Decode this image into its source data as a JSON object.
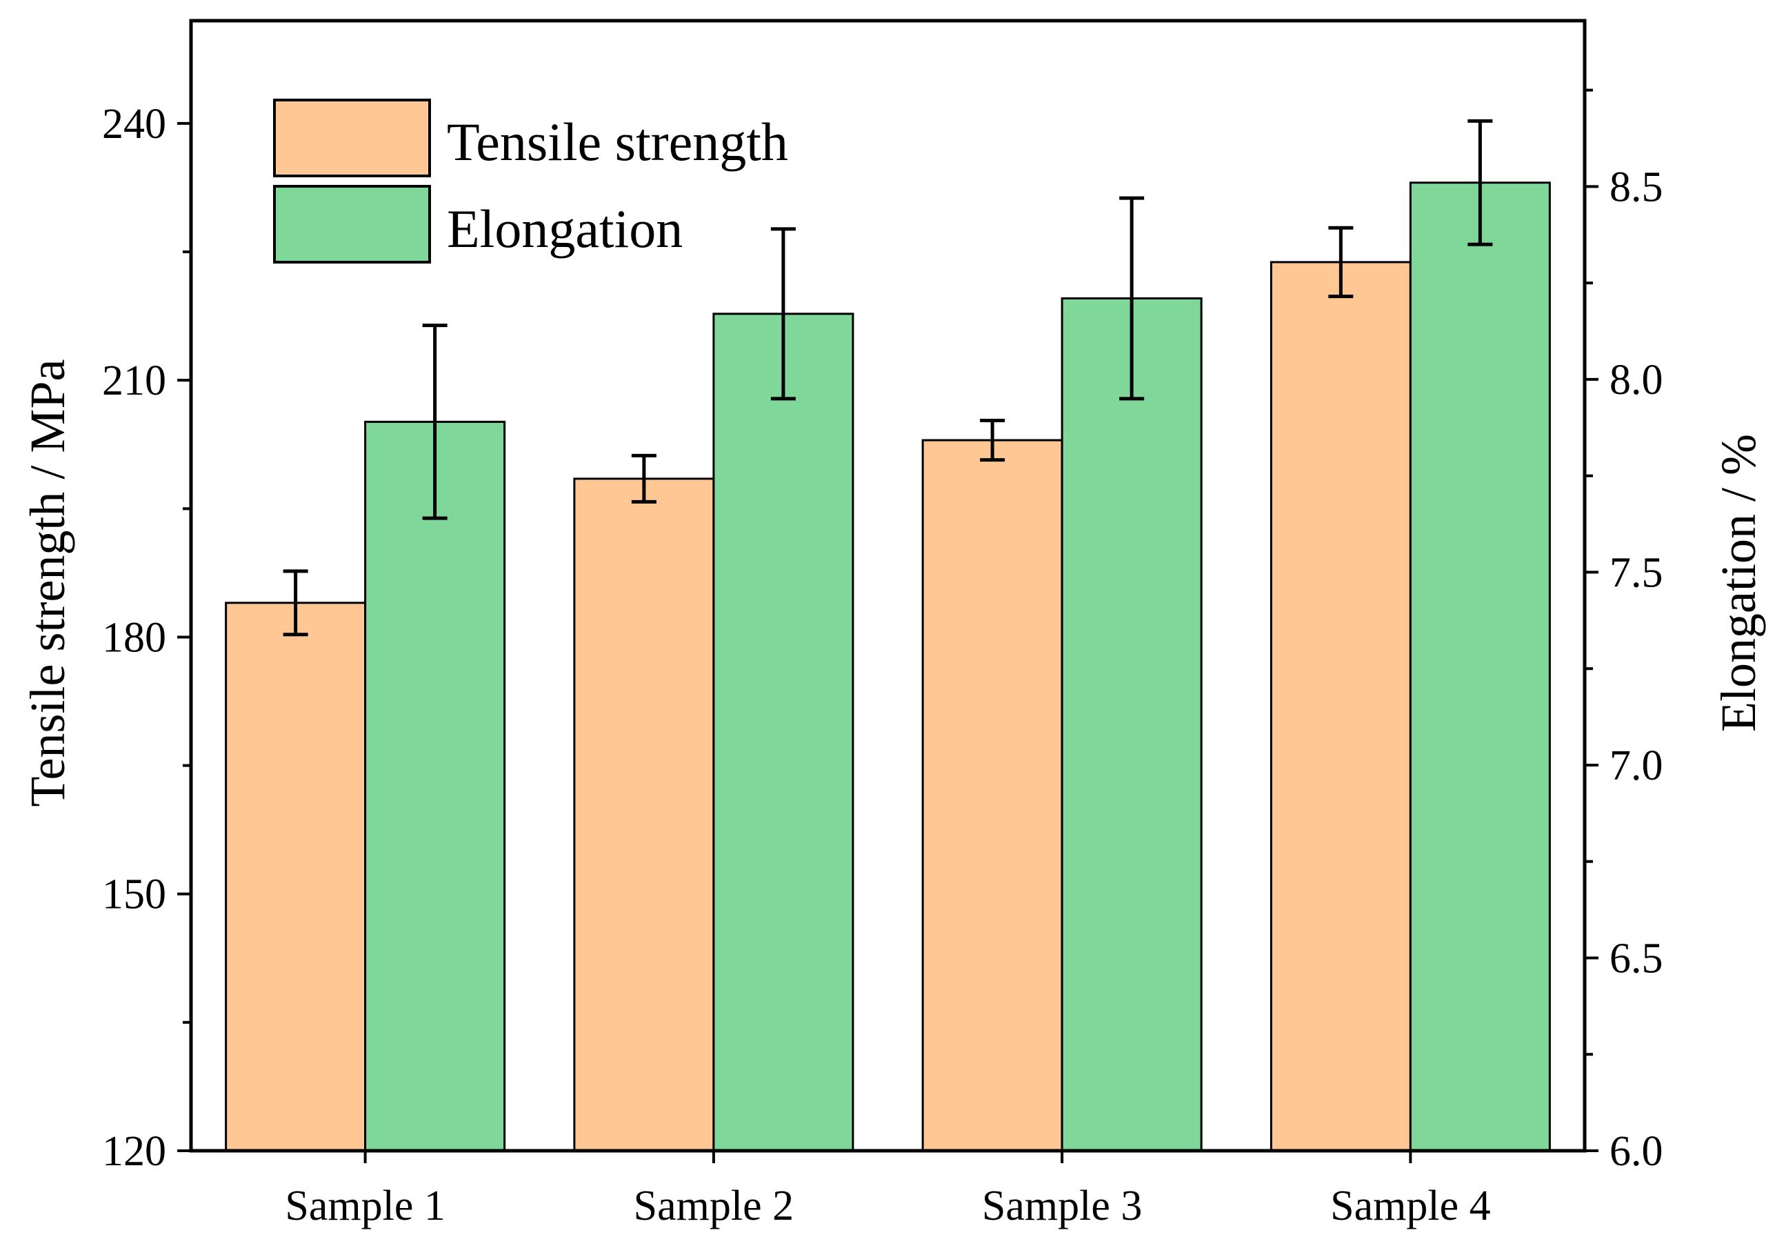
{
  "chart_data": {
    "type": "bar",
    "categories": [
      "Sample 1",
      "Sample 2",
      "Sample 3",
      "Sample 4"
    ],
    "series": [
      {
        "name": "Tensile strength",
        "axis": "left",
        "color": "#FEC794",
        "values": [
          184,
          198.5,
          203,
          223.8
        ],
        "errors": [
          3.7,
          2.7,
          2.3,
          4.0
        ]
      },
      {
        "name": "Elongation",
        "axis": "right",
        "color": "#7FD89A",
        "values": [
          7.89,
          8.17,
          8.21,
          8.51
        ],
        "errors": [
          0.25,
          0.22,
          0.26,
          0.16
        ]
      }
    ],
    "y_left": {
      "label": "Tensile strength / MPa",
      "lim": [
        120,
        252
      ],
      "ticks": [
        120,
        150,
        180,
        210,
        240
      ],
      "tick_labels": [
        "120",
        "150",
        "180",
        "210",
        "240"
      ],
      "minor_ticks": [
        135,
        165,
        195,
        225
      ]
    },
    "y_right": {
      "label": "Elongation / %",
      "lim": [
        6.0,
        8.93
      ],
      "ticks": [
        6.0,
        6.5,
        7.0,
        7.5,
        8.0,
        8.5
      ],
      "tick_labels": [
        "6.0",
        "6.5",
        "7.0",
        "7.5",
        "8.0",
        "8.5"
      ],
      "minor_ticks": [
        6.25,
        6.75,
        7.25,
        7.75,
        8.25,
        8.75
      ]
    },
    "legend": {
      "placement": "top-left",
      "entries": [
        "Tensile strength",
        "Elongation"
      ]
    },
    "grid": false
  }
}
